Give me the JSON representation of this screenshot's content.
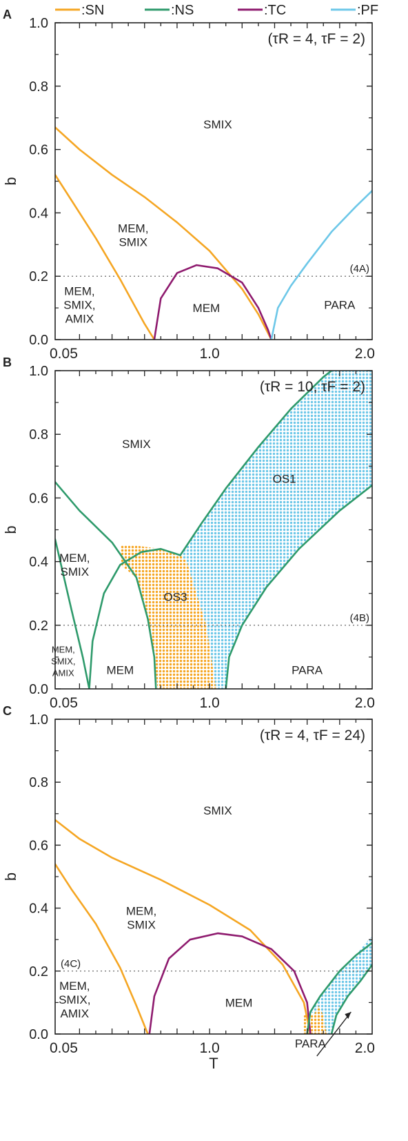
{
  "legend": [
    {
      "label": ":SN",
      "color": "#f5a623"
    },
    {
      "label": ":NS",
      "color": "#2e9a6b"
    },
    {
      "label": ":TC",
      "color": "#8e1a6e"
    },
    {
      "label": ":PF",
      "color": "#6cc7e8"
    }
  ],
  "colors": {
    "SN": "#f5a623",
    "NS": "#2e9a6b",
    "TC": "#8e1a6e",
    "PF": "#6cc7e8",
    "OS3": "#f5a623",
    "OS1": "#6cc7e8"
  },
  "chart_data": [
    {
      "panel_letter": "A",
      "type": "line",
      "params_label": "(τR = 4, τF = 2)",
      "xlabel": "",
      "ylabel": "b",
      "x_tick_labels": [
        "0.05",
        "1.0",
        "2.0"
      ],
      "y_ticks": [
        "0.0",
        "0.2",
        "0.4",
        "0.6",
        "0.8",
        "1.0"
      ],
      "ylim": [
        0,
        1
      ],
      "xlim": [
        0.05,
        2.0
      ],
      "dotted_line": {
        "y": 0.2,
        "label": "(4A)"
      },
      "regions": [
        {
          "label": "SMIX",
          "x": 1.05,
          "y": 0.68
        },
        {
          "label": "MEM, SMIX",
          "x": 0.53,
          "y": 0.33
        },
        {
          "label": "MEM, SMIX, AMIX",
          "x": 0.2,
          "y": 0.11
        },
        {
          "label": "MEM",
          "x": 0.98,
          "y": 0.1
        },
        {
          "label": "PARA",
          "x": 1.8,
          "y": 0.11
        }
      ],
      "series": [
        {
          "kind": "SN",
          "points": [
            [
              0.05,
              0.52
            ],
            [
              0.15,
              0.44
            ],
            [
              0.3,
              0.32
            ],
            [
              0.45,
              0.19
            ],
            [
              0.6,
              0.05
            ],
            [
              0.66,
              0.0
            ]
          ]
        },
        {
          "kind": "SN",
          "points": [
            [
              0.05,
              0.67
            ],
            [
              0.2,
              0.6
            ],
            [
              0.4,
              0.52
            ],
            [
              0.6,
              0.45
            ],
            [
              0.8,
              0.37
            ],
            [
              1.0,
              0.28
            ],
            [
              1.2,
              0.16
            ],
            [
              1.3,
              0.08
            ],
            [
              1.38,
              0.0
            ]
          ]
        },
        {
          "kind": "TC",
          "points": [
            [
              0.66,
              0.0
            ],
            [
              0.7,
              0.13
            ],
            [
              0.8,
              0.21
            ],
            [
              0.92,
              0.235
            ],
            [
              1.05,
              0.225
            ],
            [
              1.2,
              0.18
            ],
            [
              1.3,
              0.1
            ],
            [
              1.36,
              0.03
            ],
            [
              1.38,
              0.0
            ]
          ]
        },
        {
          "kind": "PF",
          "points": [
            [
              1.38,
              0.0
            ],
            [
              1.42,
              0.1
            ],
            [
              1.5,
              0.17
            ],
            [
              1.6,
              0.24
            ],
            [
              1.75,
              0.34
            ],
            [
              1.9,
              0.42
            ],
            [
              2.0,
              0.47
            ]
          ]
        }
      ]
    },
    {
      "panel_letter": "B",
      "type": "line",
      "params_label": "(τR = 10, τF = 2)",
      "xlabel": "",
      "ylabel": "b",
      "x_tick_labels": [
        "0.05",
        "1.0",
        "2.0"
      ],
      "y_ticks": [
        "0.0",
        "0.2",
        "0.4",
        "0.6",
        "0.8",
        "1.0"
      ],
      "ylim": [
        0,
        1
      ],
      "xlim": [
        0.05,
        2.0
      ],
      "dotted_line": {
        "y": 0.2,
        "label": "(4B)"
      },
      "regions": [
        {
          "label": "SMIX",
          "x": 0.55,
          "y": 0.77
        },
        {
          "label": "OS1",
          "x": 1.46,
          "y": 0.66
        },
        {
          "label": "MEM, SMIX",
          "x": 0.17,
          "y": 0.39
        },
        {
          "label": "OS3",
          "x": 0.79,
          "y": 0.29
        },
        {
          "label": "MEM, SMIX, AMIX",
          "x": 0.1,
          "y": 0.09
        },
        {
          "label": "MEM",
          "x": 0.45,
          "y": 0.06
        },
        {
          "label": "PARA",
          "x": 1.6,
          "y": 0.06
        }
      ],
      "series": [
        {
          "kind": "NS",
          "points": [
            [
              0.05,
              0.47
            ],
            [
              0.15,
              0.25
            ],
            [
              0.22,
              0.1
            ],
            [
              0.26,
              0.0
            ]
          ]
        },
        {
          "kind": "NS",
          "points": [
            [
              0.05,
              0.65
            ],
            [
              0.2,
              0.56
            ],
            [
              0.4,
              0.46
            ],
            [
              0.55,
              0.35
            ],
            [
              0.62,
              0.22
            ],
            [
              0.66,
              0.1
            ],
            [
              0.67,
              0.0
            ]
          ]
        },
        {
          "kind": "NS",
          "points": [
            [
              0.26,
              0.0
            ],
            [
              0.28,
              0.15
            ],
            [
              0.35,
              0.3
            ],
            [
              0.45,
              0.39
            ],
            [
              0.58,
              0.43
            ],
            [
              0.7,
              0.44
            ],
            [
              0.82,
              0.42
            ]
          ]
        },
        {
          "kind": "NS",
          "points": [
            [
              0.82,
              0.42
            ],
            [
              0.95,
              0.52
            ],
            [
              1.1,
              0.63
            ],
            [
              1.3,
              0.76
            ],
            [
              1.5,
              0.88
            ],
            [
              1.7,
              0.98
            ],
            [
              1.75,
              1.0
            ]
          ]
        },
        {
          "kind": "NS",
          "points": [
            [
              1.1,
              0.0
            ],
            [
              1.12,
              0.1
            ],
            [
              1.2,
              0.2
            ],
            [
              1.35,
              0.32
            ],
            [
              1.55,
              0.44
            ],
            [
              1.8,
              0.56
            ],
            [
              2.0,
              0.64
            ]
          ]
        }
      ],
      "dotted_regions": [
        {
          "label": "OS1",
          "color": "#6cc7e8",
          "polygon": [
            [
              0.82,
              0.42
            ],
            [
              0.95,
              0.52
            ],
            [
              1.1,
              0.63
            ],
            [
              1.3,
              0.76
            ],
            [
              1.5,
              0.88
            ],
            [
              1.7,
              0.98
            ],
            [
              1.75,
              1.0
            ],
            [
              2.0,
              1.0
            ],
            [
              2.0,
              0.64
            ],
            [
              1.8,
              0.56
            ],
            [
              1.55,
              0.44
            ],
            [
              1.35,
              0.32
            ],
            [
              1.2,
              0.2
            ],
            [
              1.12,
              0.1
            ],
            [
              1.1,
              0.0
            ],
            [
              1.04,
              0.0
            ],
            [
              0.98,
              0.2
            ],
            [
              0.9,
              0.33
            ],
            [
              0.86,
              0.4
            ]
          ]
        },
        {
          "label": "OS3",
          "color": "#f5a623",
          "polygon": [
            [
              0.45,
              0.45
            ],
            [
              0.55,
              0.45
            ],
            [
              0.7,
              0.44
            ],
            [
              0.82,
              0.42
            ],
            [
              0.86,
              0.4
            ],
            [
              0.9,
              0.33
            ],
            [
              0.98,
              0.2
            ],
            [
              1.04,
              0.0
            ],
            [
              0.68,
              0.0
            ],
            [
              0.66,
              0.1
            ],
            [
              0.62,
              0.22
            ],
            [
              0.55,
              0.35
            ],
            [
              0.45,
              0.39
            ]
          ]
        }
      ]
    },
    {
      "panel_letter": "C",
      "type": "line",
      "params_label": "(τR = 4, τF = 24)",
      "xlabel": "T",
      "ylabel": "b",
      "x_tick_labels": [
        "0.05",
        "1.0",
        "2.0"
      ],
      "y_ticks": [
        "0.0",
        "0.2",
        "0.4",
        "0.6",
        "0.8",
        "1.0"
      ],
      "ylim": [
        0,
        1
      ],
      "xlim": [
        0.05,
        2.0
      ],
      "dotted_line": {
        "y": 0.2,
        "label": "(4C)"
      },
      "regions": [
        {
          "label": "SMIX",
          "x": 1.05,
          "y": 0.71
        },
        {
          "label": "MEM, SMIX",
          "x": 0.58,
          "y": 0.37
        },
        {
          "label": "MEM, SMIX, AMIX",
          "x": 0.17,
          "y": 0.11
        },
        {
          "label": "MEM",
          "x": 1.18,
          "y": 0.1
        },
        {
          "label": "PARA",
          "x": 1.62,
          "y": -0.03
        }
      ],
      "series": [
        {
          "kind": "SN",
          "points": [
            [
              0.05,
              0.54
            ],
            [
              0.15,
              0.46
            ],
            [
              0.3,
              0.35
            ],
            [
              0.45,
              0.21
            ],
            [
              0.55,
              0.09
            ],
            [
              0.62,
              0.0
            ]
          ]
        },
        {
          "kind": "SN",
          "points": [
            [
              0.05,
              0.68
            ],
            [
              0.2,
              0.62
            ],
            [
              0.4,
              0.56
            ],
            [
              0.7,
              0.49
            ],
            [
              1.0,
              0.41
            ],
            [
              1.25,
              0.33
            ],
            [
              1.45,
              0.22
            ],
            [
              1.58,
              0.1
            ],
            [
              1.62,
              0.0
            ]
          ]
        },
        {
          "kind": "TC",
          "points": [
            [
              0.63,
              0.0
            ],
            [
              0.66,
              0.12
            ],
            [
              0.75,
              0.24
            ],
            [
              0.88,
              0.3
            ],
            [
              1.05,
              0.32
            ],
            [
              1.2,
              0.31
            ],
            [
              1.38,
              0.27
            ],
            [
              1.52,
              0.2
            ],
            [
              1.6,
              0.1
            ],
            [
              1.62,
              0.0
            ]
          ]
        },
        {
          "kind": "NS",
          "points": [
            [
              1.6,
              0.0
            ],
            [
              1.62,
              0.07
            ],
            [
              1.68,
              0.12
            ],
            [
              1.8,
              0.2
            ],
            [
              1.9,
              0.25
            ],
            [
              2.0,
              0.29
            ]
          ]
        },
        {
          "kind": "NS",
          "points": [
            [
              1.75,
              0.0
            ],
            [
              1.78,
              0.06
            ],
            [
              1.85,
              0.12
            ],
            [
              1.93,
              0.17
            ],
            [
              2.0,
              0.22
            ]
          ]
        }
      ],
      "dotted_regions": [
        {
          "label": "",
          "color": "#6cc7e8",
          "polygon": [
            [
              1.62,
              0.07
            ],
            [
              1.68,
              0.12
            ],
            [
              1.8,
              0.2
            ],
            [
              1.9,
              0.25
            ],
            [
              1.96,
              0.29
            ],
            [
              2.0,
              0.31
            ],
            [
              2.0,
              0.22
            ],
            [
              1.93,
              0.17
            ],
            [
              1.85,
              0.12
            ],
            [
              1.78,
              0.06
            ],
            [
              1.75,
              0.0
            ],
            [
              1.72,
              0.0
            ],
            [
              1.67,
              0.06
            ]
          ]
        },
        {
          "label": "",
          "color": "#f5a623",
          "polygon": [
            [
              1.58,
              0.0
            ],
            [
              1.58,
              0.06
            ],
            [
              1.64,
              0.06
            ],
            [
              1.67,
              0.09
            ],
            [
              1.7,
              0.06
            ],
            [
              1.72,
              0.0
            ]
          ]
        }
      ],
      "arrow_to": "PARA"
    }
  ]
}
